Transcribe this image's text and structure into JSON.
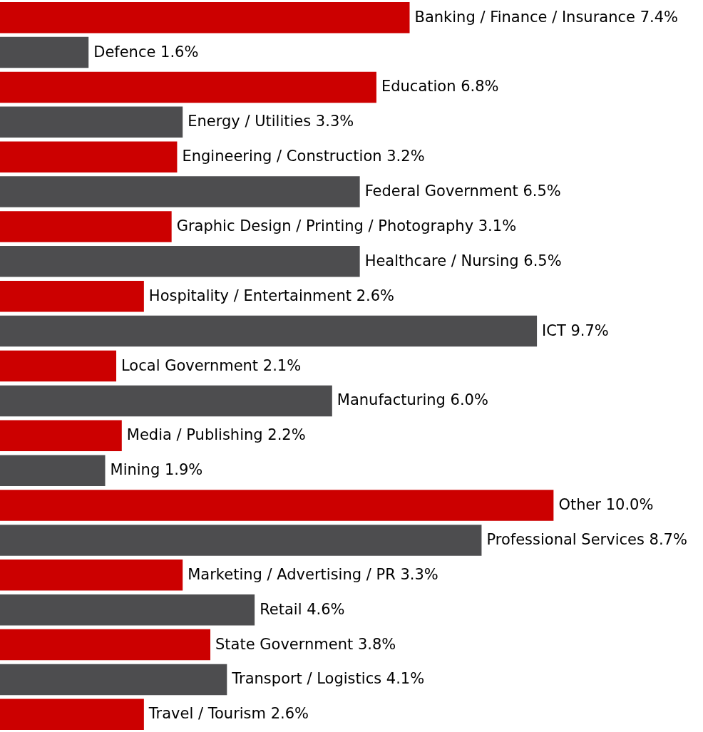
{
  "chart_data": {
    "type": "bar",
    "orientation": "horizontal",
    "categories": [
      null,
      null,
      null,
      null,
      null,
      null,
      null,
      null,
      null,
      null,
      null,
      null,
      null,
      null,
      null,
      null,
      null,
      null,
      null,
      null,
      null
    ],
    "values": [
      7.4,
      1.6,
      6.8,
      3.3,
      3.2,
      6.5,
      3.1,
      6.5,
      2.6,
      9.7,
      2.1,
      6.0,
      2.2,
      1.9,
      10.0,
      8.7,
      3.3,
      4.6,
      3.8,
      4.1,
      2.6
    ],
    "value_labels": [
      "Banking / Finance / Insurance 7.4%",
      "Defence 1.6%",
      "Education 6.8%",
      "Energy / Utilities 3.3%",
      "Engineering / Construction 3.2%",
      "Federal Government 6.5%",
      "Graphic Design / Printing  / Photography 3.1%",
      "Healthcare / Nursing 6.5%",
      "Hospitality / Entertainment 2.6%",
      "ICT 9.7%",
      "Local Government 2.1%",
      "Manufacturing 6.0%",
      "Media / Publishing 2.2%",
      "Mining 1.9%",
      "Other 10.0%",
      "Professional Services 8.7%",
      "Marketing / Advertising / PR 3.3%",
      "Retail 4.6%",
      "State Government 3.8%",
      "Transport / Logistics 4.1%",
      "Travel / Tourism 2.6%"
    ],
    "colors": [
      "#cc0000",
      "#4d4d4f",
      "#cc0000",
      "#4d4d4f",
      "#cc0000",
      "#4d4d4f",
      "#cc0000",
      "#4d4d4f",
      "#cc0000",
      "#4d4d4f",
      "#cc0000",
      "#4d4d4f",
      "#cc0000",
      "#4d4d4f",
      "#cc0000",
      "#4d4d4f",
      "#cc0000",
      "#4d4d4f",
      "#cc0000",
      "#4d4d4f",
      "#cc0000"
    ]
  }
}
